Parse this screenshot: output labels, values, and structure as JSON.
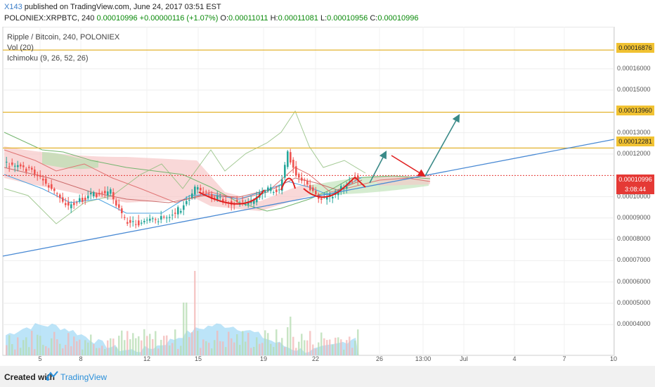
{
  "header": {
    "author": "X143",
    "published": "published on TradingView.com, June 24, 2017 03:51 EST",
    "symbol": "POLONIEX:XRPBTC, 240",
    "last": "0.00010996",
    "change": "+0.00000116 (+1.07%)",
    "o_label": "O:",
    "o_value": "0.00011011",
    "h_label": "H:",
    "h_value": "0.00011081",
    "l_label": "L:",
    "l_value": "0.00010956",
    "c_label": "C:",
    "c_value": "0.00010996"
  },
  "legend": {
    "title": "Ripple / Bitcoin, 240, POLONIEX",
    "vol": "Vol (20)",
    "ichimoku": "Ichimoku (9, 26, 52, 26)"
  },
  "price_labels": {
    "level1": "0.00016876",
    "level2": "0.00013960",
    "level3": "0.00012281",
    "current": "0.00010996",
    "countdown": "3:08:44"
  },
  "footer": {
    "created": "Created with",
    "brand": "TradingView"
  },
  "colors": {
    "up": "#26a69a",
    "down": "#ef5350",
    "level": "#e3b32e",
    "trend": "#4a8ad4",
    "cloud_bull": "#b9e0b0",
    "cloud_bear": "#f6c8c8",
    "vol": "#9fd8f5",
    "red_arrow": "#e02020",
    "teal_arrow": "#3a8a88"
  },
  "chart_data": {
    "type": "candlestick",
    "title": "Ripple / Bitcoin, 240, POLONIEX",
    "y_ticks": [
      "0.00016000",
      "0.00015000",
      "0.00013000",
      "0.00012000",
      "0.00010000",
      "0.00009000",
      "0.00008000",
      "0.00007000",
      "0.00006000",
      "0.00005000",
      "0.00004000"
    ],
    "x_ticks": [
      "5",
      "8",
      "12",
      "15",
      "19",
      "22",
      "26",
      "13:00",
      "Jul",
      "4",
      "7",
      "10"
    ],
    "horizontal_levels": [
      0.00016876,
      0.0001396,
      0.00012281
    ],
    "current_price": 0.00010996,
    "ohlc_last": {
      "open": 0.00011011,
      "high": 0.00011081,
      "low": 0.00010956,
      "close": 0.00010996
    }
  }
}
